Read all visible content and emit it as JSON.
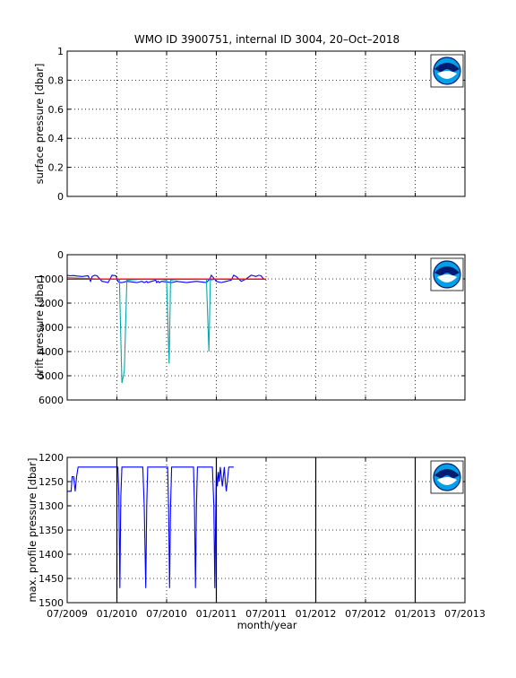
{
  "title": "WMO ID 3900751, internal ID 3004, 20–Oct–2018",
  "xlabel": "month/year",
  "x_ticks": [
    "07/2009",
    "01/2010",
    "07/2010",
    "01/2011",
    "07/2011",
    "01/2012",
    "07/2012",
    "01/2013",
    "07/2013"
  ],
  "colors": {
    "blue": "#0000ff",
    "cyan": "#00aaaa",
    "green": "#00a000",
    "red": "#ff0000",
    "grid": "#000000"
  },
  "logo_icon": "noaa-logo-icon",
  "chart_data": [
    {
      "type": "line",
      "ylabel": "surface pressure [dbar]",
      "ylim": [
        0,
        1
      ],
      "y_reversed": false,
      "y_ticks": [
        "0",
        "0.2",
        "0.4",
        "0.6",
        "0.8",
        "1"
      ],
      "grid": true,
      "series": []
    },
    {
      "type": "line",
      "ylabel": "drift pressure [dbar]",
      "ylim": [
        0,
        6000
      ],
      "y_reversed": true,
      "y_ticks": [
        "0",
        "1000",
        "2000",
        "3000",
        "4000",
        "5000",
        "6000"
      ],
      "grid": true,
      "series": [
        {
          "color": "blue",
          "x": [
            0.0,
            0.06,
            0.12,
            0.2,
            0.3,
            0.42,
            0.47,
            0.5,
            0.55,
            0.6,
            0.7,
            0.78,
            0.82,
            0.85,
            0.9,
            0.98,
            1.02,
            1.05,
            1.1,
            1.2,
            1.4,
            1.5,
            1.55,
            1.6,
            1.62,
            1.7,
            1.78,
            1.8,
            1.83,
            1.85,
            1.9,
            2.1,
            2.2,
            2.4,
            2.6,
            2.8,
            2.87,
            2.9,
            2.92,
            3.0,
            3.1,
            3.2,
            3.3,
            3.35,
            3.4,
            3.5,
            3.6,
            3.7,
            3.8,
            3.85,
            3.9,
            3.95,
            4.0
          ],
          "y": [
            850,
            870,
            860,
            880,
            900,
            870,
            1100,
            900,
            850,
            870,
            1100,
            1130,
            1150,
            1050,
            850,
            870,
            1100,
            1150,
            1150,
            1100,
            1150,
            1100,
            1150,
            1100,
            1150,
            1100,
            1050,
            1150,
            1100,
            1150,
            1100,
            1150,
            1100,
            1150,
            1100,
            1150,
            1000,
            850,
            900,
            1100,
            1150,
            1100,
            1050,
            850,
            900,
            1100,
            1000,
            850,
            900,
            850,
            870,
            1000,
            1000
          ]
        },
        {
          "color": "cyan",
          "x": [
            0.0,
            0.4,
            0.6,
            1.0,
            1.05,
            1.1,
            1.15,
            1.2,
            1.6,
            1.9,
            2.0,
            2.05,
            2.08,
            2.3,
            2.5,
            2.7,
            2.8,
            2.85,
            2.88,
            3.0,
            3.2,
            3.4,
            3.6,
            3.8,
            4.0
          ],
          "y": [
            950,
            980,
            1000,
            1000,
            1050,
            5300,
            4800,
            1050,
            1000,
            1020,
            1050,
            4500,
            1050,
            1000,
            1020,
            1000,
            1000,
            4000,
            1050,
            1000,
            1020,
            1000,
            1000,
            1020,
            1000
          ]
        },
        {
          "color": "green",
          "x": [
            0.0,
            1.0,
            2.0,
            3.0,
            4.0
          ],
          "y": [
            1020,
            1010,
            1015,
            1010,
            1020
          ]
        },
        {
          "color": "red",
          "x": [
            0.0,
            1.0,
            2.0,
            3.0,
            4.0
          ],
          "y": [
            1000,
            1000,
            1000,
            1000,
            1000
          ]
        }
      ]
    },
    {
      "type": "line",
      "ylabel": "max. profile pressure [dbar]",
      "ylim": [
        1200,
        1500
      ],
      "y_reversed": true,
      "y_ticks": [
        "1200",
        "1250",
        "1300",
        "1350",
        "1400",
        "1450",
        "1500"
      ],
      "grid": true,
      "series": [
        {
          "color": "blue",
          "x": [
            0.0,
            0.08,
            0.1,
            0.13,
            0.16,
            0.19,
            0.22,
            0.24,
            0.26,
            0.3,
            0.32,
            1.0,
            1.02,
            1.04,
            1.06,
            1.08,
            1.1,
            1.13,
            1.5,
            1.52,
            1.55,
            1.58,
            1.6,
            1.62,
            1.65,
            2.0,
            2.02,
            2.04,
            2.06,
            2.08,
            2.1,
            2.13,
            2.52,
            2.54,
            2.56,
            2.58,
            2.6,
            2.62,
            2.65,
            2.9,
            2.92,
            2.95,
            2.97,
            2.99,
            3.0,
            3.02,
            3.04,
            3.06,
            3.08,
            3.1,
            3.12,
            3.14,
            3.16,
            3.18,
            3.2,
            3.22,
            3.25,
            3.35
          ],
          "y": [
            1270,
            1270,
            1240,
            1240,
            1270,
            1240,
            1220,
            1220,
            1220,
            1220,
            1220,
            1220,
            1220,
            1280,
            1470,
            1280,
            1220,
            1220,
            1220,
            1220,
            1300,
            1470,
            1300,
            1220,
            1220,
            1220,
            1220,
            1300,
            1470,
            1300,
            1220,
            1220,
            1220,
            1220,
            1300,
            1470,
            1300,
            1220,
            1220,
            1220,
            1220,
            1300,
            1470,
            1300,
            1230,
            1260,
            1230,
            1250,
            1220,
            1240,
            1260,
            1240,
            1220,
            1250,
            1270,
            1250,
            1220,
            1220
          ]
        }
      ]
    }
  ]
}
